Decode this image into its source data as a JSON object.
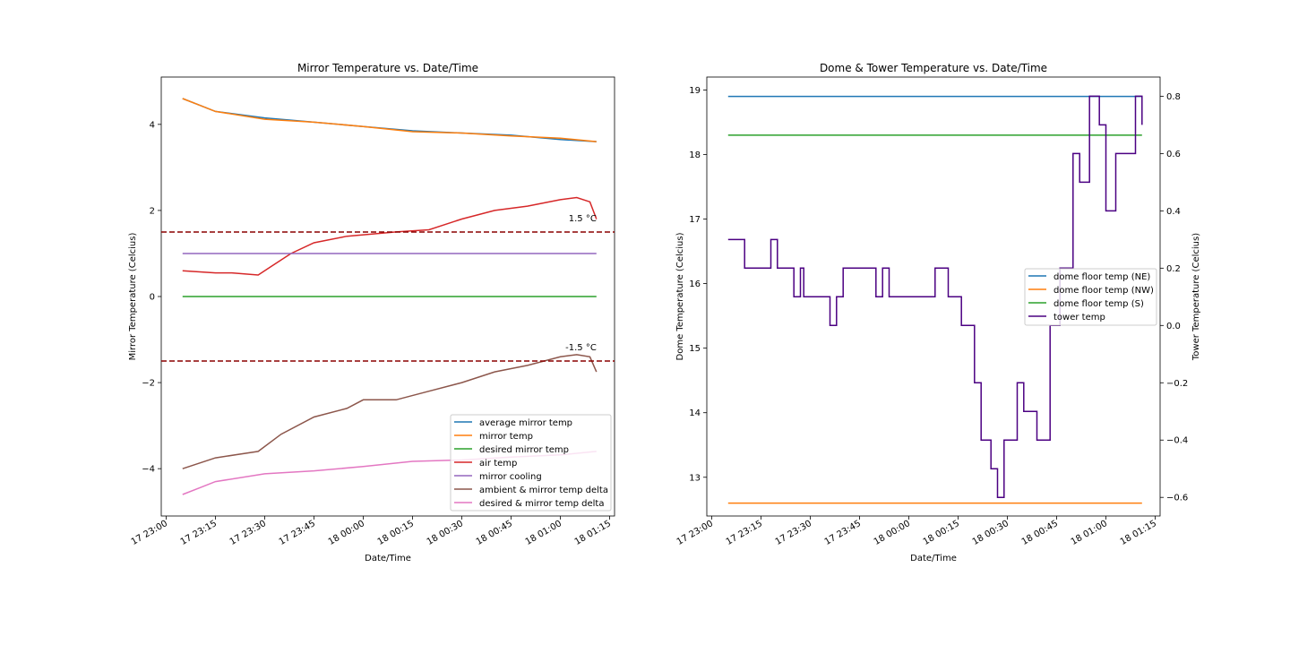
{
  "chart_data": [
    {
      "type": "line",
      "title": "Mirror Temperature vs. Date/Time",
      "xlabel": "Date/Time",
      "ylabel": "Mirror Temperature (Celcius)",
      "x_ticks": [
        "17 23:00",
        "17 23:15",
        "17 23:30",
        "17 23:45",
        "18 00:00",
        "18 00:15",
        "18 00:30",
        "18 00:45",
        "18 01:00",
        "18 01:15"
      ],
      "y_ticks": [
        "−4",
        "−2",
        "0",
        "2",
        "4"
      ],
      "xlim": [
        "17 23:00",
        "18 01:15"
      ],
      "ylim": [
        -5.1,
        5.1
      ],
      "grid": false,
      "legend_position": "lower right",
      "series": [
        {
          "name": "average mirror temp",
          "color": "#1f77b4",
          "x": [
            "17 23:05",
            "17 23:10",
            "17 23:15",
            "17 23:30",
            "17 23:45",
            "18 00:00",
            "18 00:15",
            "18 00:30",
            "18 00:45",
            "18 01:00",
            "18 01:11"
          ],
          "y": [
            4.6,
            4.45,
            4.3,
            4.15,
            4.05,
            3.95,
            3.85,
            3.8,
            3.75,
            3.65,
            3.6
          ]
        },
        {
          "name": "mirror temp",
          "color": "#ff7f0e",
          "x": [
            "17 23:05",
            "17 23:10",
            "17 23:15",
            "17 23:30",
            "17 23:45",
            "18 00:00",
            "18 00:15",
            "18 00:30",
            "18 00:45",
            "18 01:00",
            "18 01:11"
          ],
          "y": [
            4.6,
            4.45,
            4.3,
            4.12,
            4.05,
            3.95,
            3.83,
            3.8,
            3.73,
            3.68,
            3.6
          ]
        },
        {
          "name": "desired mirror temp",
          "color": "#2ca02c",
          "x": [
            "17 23:05",
            "18 01:11"
          ],
          "y": [
            0,
            0
          ]
        },
        {
          "name": "air temp",
          "color": "#d62728",
          "x": [
            "17 23:05",
            "17 23:15",
            "17 23:20",
            "17 23:28",
            "17 23:32",
            "17 23:38",
            "17 23:45",
            "17 23:55",
            "18 00:10",
            "18 00:20",
            "18 00:30",
            "18 00:40",
            "18 00:50",
            "18 01:00",
            "18 01:05",
            "18 01:09",
            "18 01:11"
          ],
          "y": [
            0.6,
            0.55,
            0.55,
            0.5,
            0.7,
            1.0,
            1.25,
            1.4,
            1.5,
            1.55,
            1.8,
            2.0,
            2.1,
            2.25,
            2.3,
            2.2,
            1.8
          ]
        },
        {
          "name": "mirror cooling",
          "color": "#9467bd",
          "x": [
            "17 23:05",
            "18 01:11"
          ],
          "y": [
            1,
            1
          ]
        },
        {
          "name": "ambient & mirror temp delta",
          "color": "#8c564b",
          "x": [
            "17 23:05",
            "17 23:15",
            "17 23:28",
            "17 23:35",
            "17 23:45",
            "17 23:55",
            "18 00:00",
            "18 00:10",
            "18 00:20",
            "18 00:30",
            "18 00:40",
            "18 00:50",
            "18 01:00",
            "18 01:05",
            "18 01:09",
            "18 01:11"
          ],
          "y": [
            -4.0,
            -3.75,
            -3.6,
            -3.2,
            -2.8,
            -2.6,
            -2.4,
            -2.4,
            -2.2,
            -2.0,
            -1.75,
            -1.6,
            -1.4,
            -1.35,
            -1.4,
            -1.75
          ]
        },
        {
          "name": "desired & mirror temp delta",
          "color": "#e377c2",
          "x": [
            "17 23:05",
            "17 23:10",
            "17 23:15",
            "17 23:30",
            "17 23:45",
            "18 00:00",
            "18 00:15",
            "18 00:30",
            "18 00:45",
            "18 01:00",
            "18 01:11"
          ],
          "y": [
            -4.6,
            -4.45,
            -4.3,
            -4.12,
            -4.05,
            -3.95,
            -3.83,
            -3.8,
            -3.73,
            -3.68,
            -3.6
          ]
        }
      ],
      "reference_lines": [
        {
          "y": 1.5,
          "label": "1.5 °C",
          "color": "#8b0000",
          "style": "dashed"
        },
        {
          "y": -1.5,
          "label": "-1.5 °C",
          "color": "#8b0000",
          "style": "dashed"
        }
      ]
    },
    {
      "type": "line",
      "title": "Dome & Tower Temperature vs. Date/Time",
      "xlabel": "Date/Time",
      "ylabel": "Dome Temperature (Celcius)",
      "ylabel_right": "Tower Temperature (Celcius)",
      "x_ticks": [
        "17 23:00",
        "17 23:15",
        "17 23:30",
        "17 23:45",
        "18 00:00",
        "18 00:15",
        "18 00:30",
        "18 00:45",
        "18 01:00",
        "18 01:15"
      ],
      "y_ticks": [
        "13",
        "14",
        "15",
        "16",
        "17",
        "18",
        "19"
      ],
      "y_ticks_right": [
        "−0.6",
        "−0.4",
        "−0.2",
        "0.0",
        "0.2",
        "0.4",
        "0.6",
        "0.8"
      ],
      "xlim": [
        "17 23:00",
        "18 01:15"
      ],
      "ylim": [
        12.4,
        19.2
      ],
      "ylim_right": [
        -0.665,
        0.867
      ],
      "grid": false,
      "legend_position": "center right",
      "series": [
        {
          "name": "dome floor temp (NE)",
          "color": "#1f77b4",
          "axis": "left",
          "x": [
            "17 23:05",
            "18 01:11"
          ],
          "y": [
            18.9,
            18.9
          ]
        },
        {
          "name": "dome floor temp (NW)",
          "color": "#ff7f0e",
          "axis": "left",
          "x": [
            "17 23:05",
            "18 01:11"
          ],
          "y": [
            12.6,
            12.6
          ]
        },
        {
          "name": "dome floor temp (S)",
          "color": "#2ca02c",
          "axis": "left",
          "x": [
            "17 23:05",
            "18 01:11"
          ],
          "y": [
            18.3,
            18.3
          ]
        },
        {
          "name": "tower temp",
          "color": "#4b0082",
          "axis": "right",
          "step": true,
          "x": [
            "17 23:05",
            "17 23:10",
            "17 23:18",
            "17 23:20",
            "17 23:25",
            "17 23:27",
            "17 23:28",
            "17 23:30",
            "17 23:36",
            "17 23:38",
            "17 23:40",
            "17 23:50",
            "17 23:52",
            "17 23:54",
            "17 23:58",
            "18 00:08",
            "18 00:12",
            "18 00:16",
            "18 00:20",
            "18 00:22",
            "18 00:25",
            "18 00:27",
            "18 00:29",
            "18 00:31",
            "18 00:33",
            "18 00:35",
            "18 00:39",
            "18 00:43",
            "18 00:46",
            "18 00:50",
            "18 00:52",
            "18 00:55",
            "18 00:58",
            "18 01:00",
            "18 01:03",
            "18 01:05",
            "18 01:09",
            "18 01:11"
          ],
          "y": [
            0.3,
            0.2,
            0.3,
            0.2,
            0.1,
            0.2,
            0.1,
            0.1,
            0.0,
            0.1,
            0.2,
            0.1,
            0.2,
            0.1,
            0.1,
            0.2,
            0.1,
            0.0,
            -0.2,
            -0.4,
            -0.5,
            -0.6,
            -0.4,
            -0.4,
            -0.2,
            -0.3,
            -0.4,
            0.0,
            0.2,
            0.6,
            0.5,
            0.8,
            0.7,
            0.4,
            0.6,
            0.6,
            0.8,
            0.7
          ]
        }
      ]
    }
  ]
}
